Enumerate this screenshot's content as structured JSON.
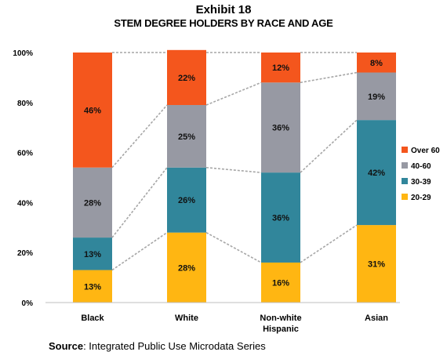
{
  "exhibit_label": "Exhibit 18",
  "title": "STEM DEGREE HOLDERS BY RACE AND AGE",
  "source": {
    "label": "Source",
    "text": ": Integrated Public Use Microdata Series"
  },
  "chart_data": {
    "type": "bar",
    "stacked": true,
    "categories": [
      "Black",
      "White",
      "Non-white Hispanic",
      "Asian"
    ],
    "category_lines": [
      [
        "Black"
      ],
      [
        "White"
      ],
      [
        "Non-white",
        "Hispanic"
      ],
      [
        "Asian"
      ]
    ],
    "series": [
      {
        "name": "20-29",
        "color": "#FFB612",
        "values": [
          13,
          28,
          16,
          31
        ]
      },
      {
        "name": "30-39",
        "color": "#31869B",
        "values": [
          13,
          26,
          36,
          42
        ]
      },
      {
        "name": "40-60",
        "color": "#9799A3",
        "values": [
          28,
          25,
          36,
          19
        ]
      },
      {
        "name": "Over 60",
        "color": "#F4561D",
        "values": [
          46,
          22,
          12,
          8
        ]
      }
    ],
    "value_suffix": "%",
    "ylim": [
      0,
      100
    ],
    "yticks": [
      "0%",
      "20%",
      "40%",
      "60%",
      "80%",
      "100%"
    ],
    "grid": false,
    "connector_lines": true,
    "legend_position": "right",
    "legend_order": [
      "Over 60",
      "40-60",
      "30-39",
      "20-29"
    ]
  }
}
